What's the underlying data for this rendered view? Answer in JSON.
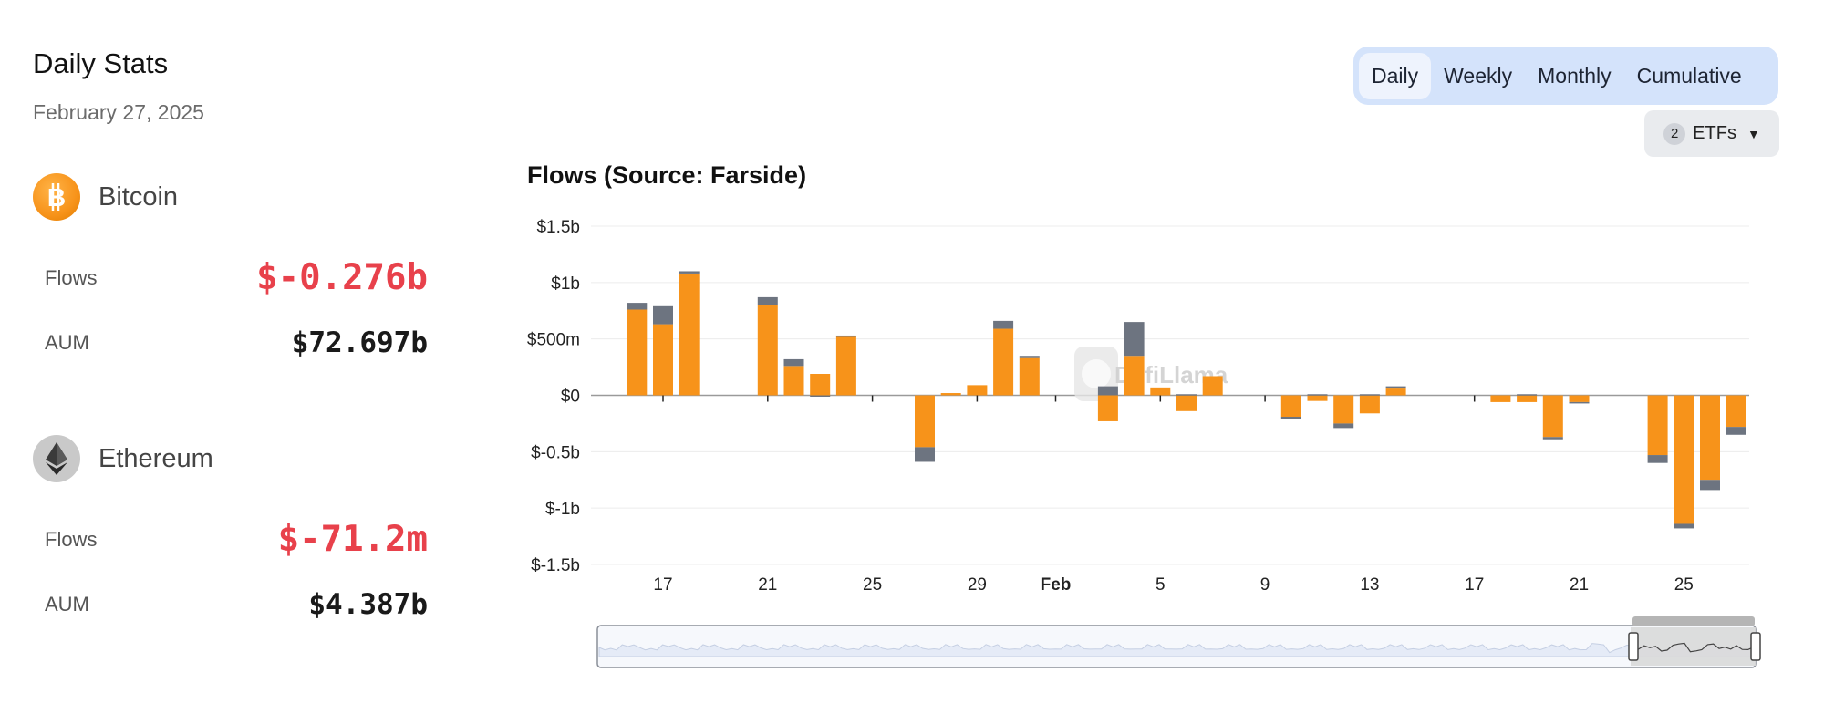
{
  "header": {
    "title": "Daily Stats",
    "date": "February 27, 2025"
  },
  "assets": [
    {
      "name": "Bitcoin",
      "icon": "bitcoin-icon",
      "color": "#f7931a",
      "flows_label": "Flows",
      "flows": "$-0.276b",
      "aum_label": "AUM",
      "aum": "$72.697b"
    },
    {
      "name": "Ethereum",
      "icon": "ethereum-icon",
      "color": "#bdbdbd",
      "flows_label": "Flows",
      "flows": "$-71.2m",
      "aum_label": "AUM",
      "aum": "$4.387b"
    }
  ],
  "controls": {
    "periods": [
      "Daily",
      "Weekly",
      "Monthly",
      "Cumulative"
    ],
    "active_period": "Daily",
    "etf_count": "2",
    "etf_label": "ETFs"
  },
  "watermark": "DefiLlama",
  "chart_data": {
    "type": "bar",
    "stacked": true,
    "title": "Flows (Source: Farside)",
    "xlabel": "",
    "ylabel": "",
    "ylim": [
      -1.5,
      1.5
    ],
    "yticks": [
      {
        "value": 1.5,
        "label": "$1.5b"
      },
      {
        "value": 1,
        "label": "$1b"
      },
      {
        "value": 0.5,
        "label": "$500m"
      },
      {
        "value": 0,
        "label": "$0"
      },
      {
        "value": -0.5,
        "label": "$-0.5b"
      },
      {
        "value": -1,
        "label": "$-1b"
      },
      {
        "value": -1.5,
        "label": "$-1.5b"
      }
    ],
    "xticks": [
      {
        "day": 17,
        "label": "17",
        "bold": false
      },
      {
        "day": 21,
        "label": "21",
        "bold": false
      },
      {
        "day": 25,
        "label": "25",
        "bold": false
      },
      {
        "day": 29,
        "label": "29",
        "bold": false
      },
      {
        "day": 32,
        "label": "Feb",
        "bold": true
      },
      {
        "day": 36,
        "label": "5",
        "bold": false
      },
      {
        "day": 40,
        "label": "9",
        "bold": false
      },
      {
        "day": 44,
        "label": "13",
        "bold": false
      },
      {
        "day": 48,
        "label": "17",
        "bold": false
      },
      {
        "day": 52,
        "label": "21",
        "bold": false
      },
      {
        "day": 56,
        "label": "25",
        "bold": false
      }
    ],
    "series": [
      {
        "name": "Bitcoin",
        "color": "#f7931a"
      },
      {
        "name": "Ethereum",
        "color": "#6d7480"
      }
    ],
    "days": [
      {
        "day": 16,
        "btc": 0.76,
        "eth": 0.06
      },
      {
        "day": 17,
        "btc": 0.63,
        "eth": 0.16
      },
      {
        "day": 18,
        "btc": 1.08,
        "eth": 0.02
      },
      {
        "day": 21,
        "btc": 0.8,
        "eth": 0.07
      },
      {
        "day": 22,
        "btc": 0.26,
        "eth": 0.06
      },
      {
        "day": 23,
        "btc": 0.19,
        "eth": -0.01
      },
      {
        "day": 24,
        "btc": 0.52,
        "eth": 0.01
      },
      {
        "day": 27,
        "btc": -0.46,
        "eth": -0.13
      },
      {
        "day": 28,
        "btc": 0.02,
        "eth": 0.0
      },
      {
        "day": 29,
        "btc": 0.09,
        "eth": 0.0
      },
      {
        "day": 30,
        "btc": 0.59,
        "eth": 0.07
      },
      {
        "day": 31,
        "btc": 0.33,
        "eth": 0.02
      },
      {
        "day": 34,
        "btc": -0.23,
        "eth": 0.08
      },
      {
        "day": 35,
        "btc": 0.35,
        "eth": 0.3
      },
      {
        "day": 36,
        "btc": 0.07,
        "eth": 0.0
      },
      {
        "day": 37,
        "btc": -0.14,
        "eth": 0.01
      },
      {
        "day": 38,
        "btc": 0.17,
        "eth": 0.0
      },
      {
        "day": 41,
        "btc": -0.19,
        "eth": -0.02
      },
      {
        "day": 42,
        "btc": -0.05,
        "eth": 0.01
      },
      {
        "day": 43,
        "btc": -0.25,
        "eth": -0.04
      },
      {
        "day": 44,
        "btc": -0.16,
        "eth": 0.01
      },
      {
        "day": 45,
        "btc": 0.06,
        "eth": 0.02
      },
      {
        "day": 49,
        "btc": -0.06,
        "eth": 0.0
      },
      {
        "day": 50,
        "btc": -0.06,
        "eth": 0.01
      },
      {
        "day": 51,
        "btc": -0.37,
        "eth": -0.02
      },
      {
        "day": 52,
        "btc": -0.06,
        "eth": -0.01
      },
      {
        "day": 55,
        "btc": -0.53,
        "eth": -0.07
      },
      {
        "day": 56,
        "btc": -1.14,
        "eth": -0.04
      },
      {
        "day": 57,
        "btc": -0.75,
        "eth": -0.09
      },
      {
        "day": 58,
        "btc": -0.28,
        "eth": -0.07
      }
    ]
  }
}
